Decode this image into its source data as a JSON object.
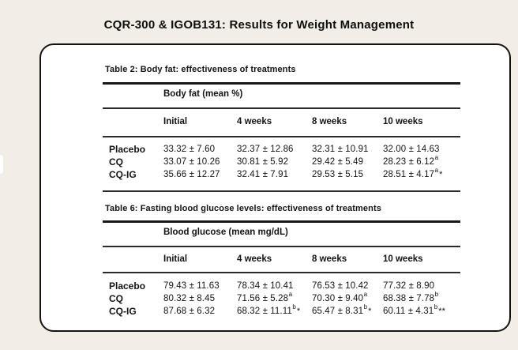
{
  "page": {
    "title": "CQR-300 & IGOB131: Results for Weight Management"
  },
  "colors": {
    "background": "#f2eee5",
    "card_background": "#ffffff",
    "card_border": "#17130c",
    "text": "#131313",
    "rule": "#181818"
  },
  "tables": [
    {
      "caption": "Table 2: Body fat: effectiveness of treatments",
      "group_header": "Body fat (mean %)",
      "columns": [
        "Initial",
        "4 weeks",
        "8 weeks",
        "10 weeks"
      ],
      "rows": [
        {
          "label": "Placebo",
          "cells": [
            {
              "text": "33.32 ± 7.60",
              "sup": "",
              "star": ""
            },
            {
              "text": "32.37 ± 12.86",
              "sup": "",
              "star": ""
            },
            {
              "text": "32.31 ± 10.91",
              "sup": "",
              "star": ""
            },
            {
              "text": "32.00 ± 14.63",
              "sup": "",
              "star": ""
            }
          ]
        },
        {
          "label": "CQ",
          "cells": [
            {
              "text": "33.07 ± 10.26",
              "sup": "",
              "star": ""
            },
            {
              "text": "30.81 ± 5.92",
              "sup": "",
              "star": ""
            },
            {
              "text": "29.42 ± 5.49",
              "sup": "",
              "star": ""
            },
            {
              "text": "28.23 ± 6.12",
              "sup": "a",
              "star": ""
            }
          ]
        },
        {
          "label": "CQ-IG",
          "cells": [
            {
              "text": "35.66 ± 12.27",
              "sup": "",
              "star": ""
            },
            {
              "text": "32.41 ± 7.91",
              "sup": "",
              "star": ""
            },
            {
              "text": "29.53 ± 5.15",
              "sup": "",
              "star": ""
            },
            {
              "text": "28.51 ± 4.17",
              "sup": "a",
              "star": "*"
            }
          ]
        }
      ]
    },
    {
      "caption": "Table 6: Fasting blood glucose levels: effectiveness of treatments",
      "group_header": "Blood glucose (mean mg/dL)",
      "columns": [
        "Initial",
        "4 weeks",
        "8 weeks",
        "10 weeks"
      ],
      "rows": [
        {
          "label": "Placebo",
          "cells": [
            {
              "text": "79.43 ± 11.63",
              "sup": "",
              "star": ""
            },
            {
              "text": "78.34 ± 10.41",
              "sup": "",
              "star": ""
            },
            {
              "text": "76.53 ± 10.42",
              "sup": "",
              "star": ""
            },
            {
              "text": "77.32 ± 8.90",
              "sup": "",
              "star": ""
            }
          ]
        },
        {
          "label": "CQ",
          "cells": [
            {
              "text": "80.32 ± 8.45",
              "sup": "",
              "star": ""
            },
            {
              "text": "71.56 ± 5.28",
              "sup": "a",
              "star": ""
            },
            {
              "text": "70.30 ± 9.40",
              "sup": "a",
              "star": ""
            },
            {
              "text": "68.38 ± 7.78",
              "sup": "b",
              "star": ""
            }
          ]
        },
        {
          "label": "CQ-IG",
          "cells": [
            {
              "text": "87.68 ± 6.32",
              "sup": "",
              "star": ""
            },
            {
              "text": "68.32 ± 11.11",
              "sup": "b",
              "star": "*"
            },
            {
              "text": "65.47 ± 8.31",
              "sup": "b",
              "star": "*"
            },
            {
              "text": "60.11 ± 4.31",
              "sup": "b",
              "star": "**"
            }
          ]
        }
      ]
    }
  ]
}
